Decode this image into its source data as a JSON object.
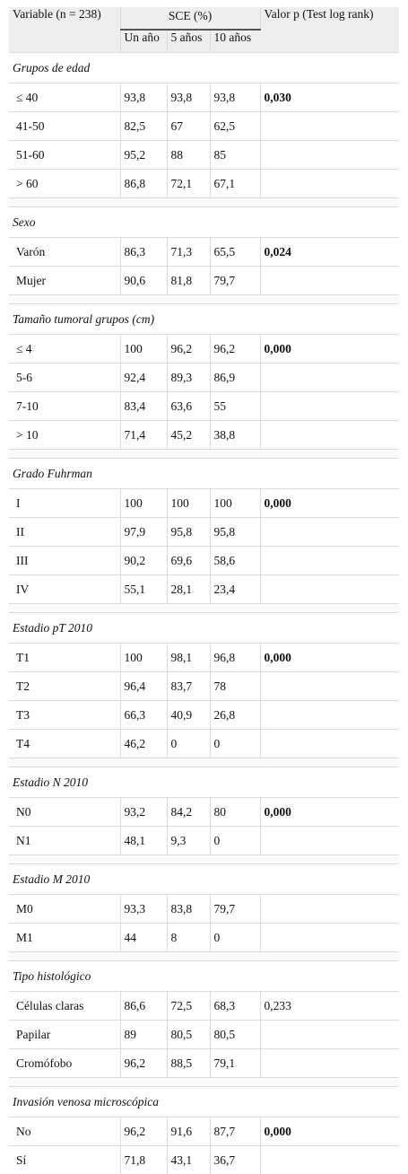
{
  "header": {
    "variable": "Variable (n = 238)",
    "sce": "SCE (%)",
    "valor_p": "Valor p (Test log rank)",
    "sub": [
      "Un año",
      "5 años",
      "10 años"
    ]
  },
  "groups": [
    {
      "title": "Grupos de edad",
      "rows": [
        {
          "label": "≤ 40",
          "v1": "93,8",
          "v5": "93,8",
          "v10": "93,8",
          "p": "0,030",
          "p_bold": true
        },
        {
          "label": "41-50",
          "v1": "82,5",
          "v5": "67",
          "v10": "62,5",
          "p": ""
        },
        {
          "label": "51-60",
          "v1": "95,2",
          "v5": "88",
          "v10": "85",
          "p": ""
        },
        {
          "label": "> 60",
          "v1": "86,8",
          "v5": "72,1",
          "v10": "67,1",
          "p": ""
        }
      ]
    },
    {
      "title": "Sexo",
      "rows": [
        {
          "label": "Varón",
          "v1": "86,3",
          "v5": "71,3",
          "v10": "65,5",
          "p": "0,024",
          "p_bold": true
        },
        {
          "label": "Mujer",
          "v1": "90,6",
          "v5": "81,8",
          "v10": "79,7",
          "p": ""
        }
      ]
    },
    {
      "title": "Tamaño tumoral grupos (cm)",
      "rows": [
        {
          "label": "≤ 4",
          "v1": "100",
          "v5": "96,2",
          "v10": "96,2",
          "p": "0,000",
          "p_bold": true
        },
        {
          "label": "5-6",
          "v1": "92,4",
          "v5": "89,3",
          "v10": "86,9",
          "p": ""
        },
        {
          "label": "7-10",
          "v1": "83,4",
          "v5": "63,6",
          "v10": "55",
          "p": ""
        },
        {
          "label": "> 10",
          "v1": "71,4",
          "v5": "45,2",
          "v10": "38,8",
          "p": ""
        }
      ]
    },
    {
      "title": "Grado Fuhrman",
      "rows": [
        {
          "label": "I",
          "v1": "100",
          "v5": "100",
          "v10": "100",
          "p": "0,000",
          "p_bold": true
        },
        {
          "label": "II",
          "v1": "97,9",
          "v5": "95,8",
          "v10": "95,8",
          "p": ""
        },
        {
          "label": "III",
          "v1": "90,2",
          "v5": "69,6",
          "v10": "58,6",
          "p": ""
        },
        {
          "label": "IV",
          "v1": "55,1",
          "v5": "28,1",
          "v10": "23,4",
          "p": ""
        }
      ]
    },
    {
      "title": "Estadio pT 2010",
      "rows": [
        {
          "label": "T1",
          "v1": "100",
          "v5": "98,1",
          "v10": "96,8",
          "p": "0,000",
          "p_bold": true
        },
        {
          "label": "T2",
          "v1": "96,4",
          "v5": "83,7",
          "v10": "78",
          "p": ""
        },
        {
          "label": "T3",
          "v1": "66,3",
          "v5": "40,9",
          "v10": "26,8",
          "p": ""
        },
        {
          "label": "T4",
          "v1": "46,2",
          "v5": "0",
          "v10": "0",
          "p": ""
        }
      ]
    },
    {
      "title": "Estadio N 2010",
      "rows": [
        {
          "label": "N0",
          "v1": "93,2",
          "v5": "84,2",
          "v10": "80",
          "p": "0,000",
          "p_bold": true
        },
        {
          "label": "N1",
          "v1": "48,1",
          "v5": "9,3",
          "v10": "0",
          "p": ""
        }
      ]
    },
    {
      "title": "Estadio M 2010",
      "rows": [
        {
          "label": "M0",
          "v1": "93,3",
          "v5": "83,8",
          "v10": "79,7",
          "p": ""
        },
        {
          "label": "M1",
          "v1": "44",
          "v5": "8",
          "v10": "0",
          "p": ""
        }
      ]
    },
    {
      "title": "Tipo histológico",
      "rows": [
        {
          "label": "Células claras",
          "v1": "86,6",
          "v5": "72,5",
          "v10": "68,3",
          "p": "0,233",
          "p_bold": false
        },
        {
          "label": "Papilar",
          "v1": "89",
          "v5": "80,5",
          "v10": "80,5",
          "p": ""
        },
        {
          "label": "Cromófobo",
          "v1": "96,2",
          "v5": "88,5",
          "v10": "79,1",
          "p": ""
        }
      ]
    },
    {
      "title": "Invasión venosa microscópica",
      "rows": [
        {
          "label": "No",
          "v1": "96,2",
          "v5": "91,6",
          "v10": "87,7",
          "p": "0,000",
          "p_bold": true
        },
        {
          "label": "Sí",
          "v1": "71,8",
          "v5": "43,1",
          "v10": "36,7",
          "p": ""
        }
      ]
    }
  ]
}
